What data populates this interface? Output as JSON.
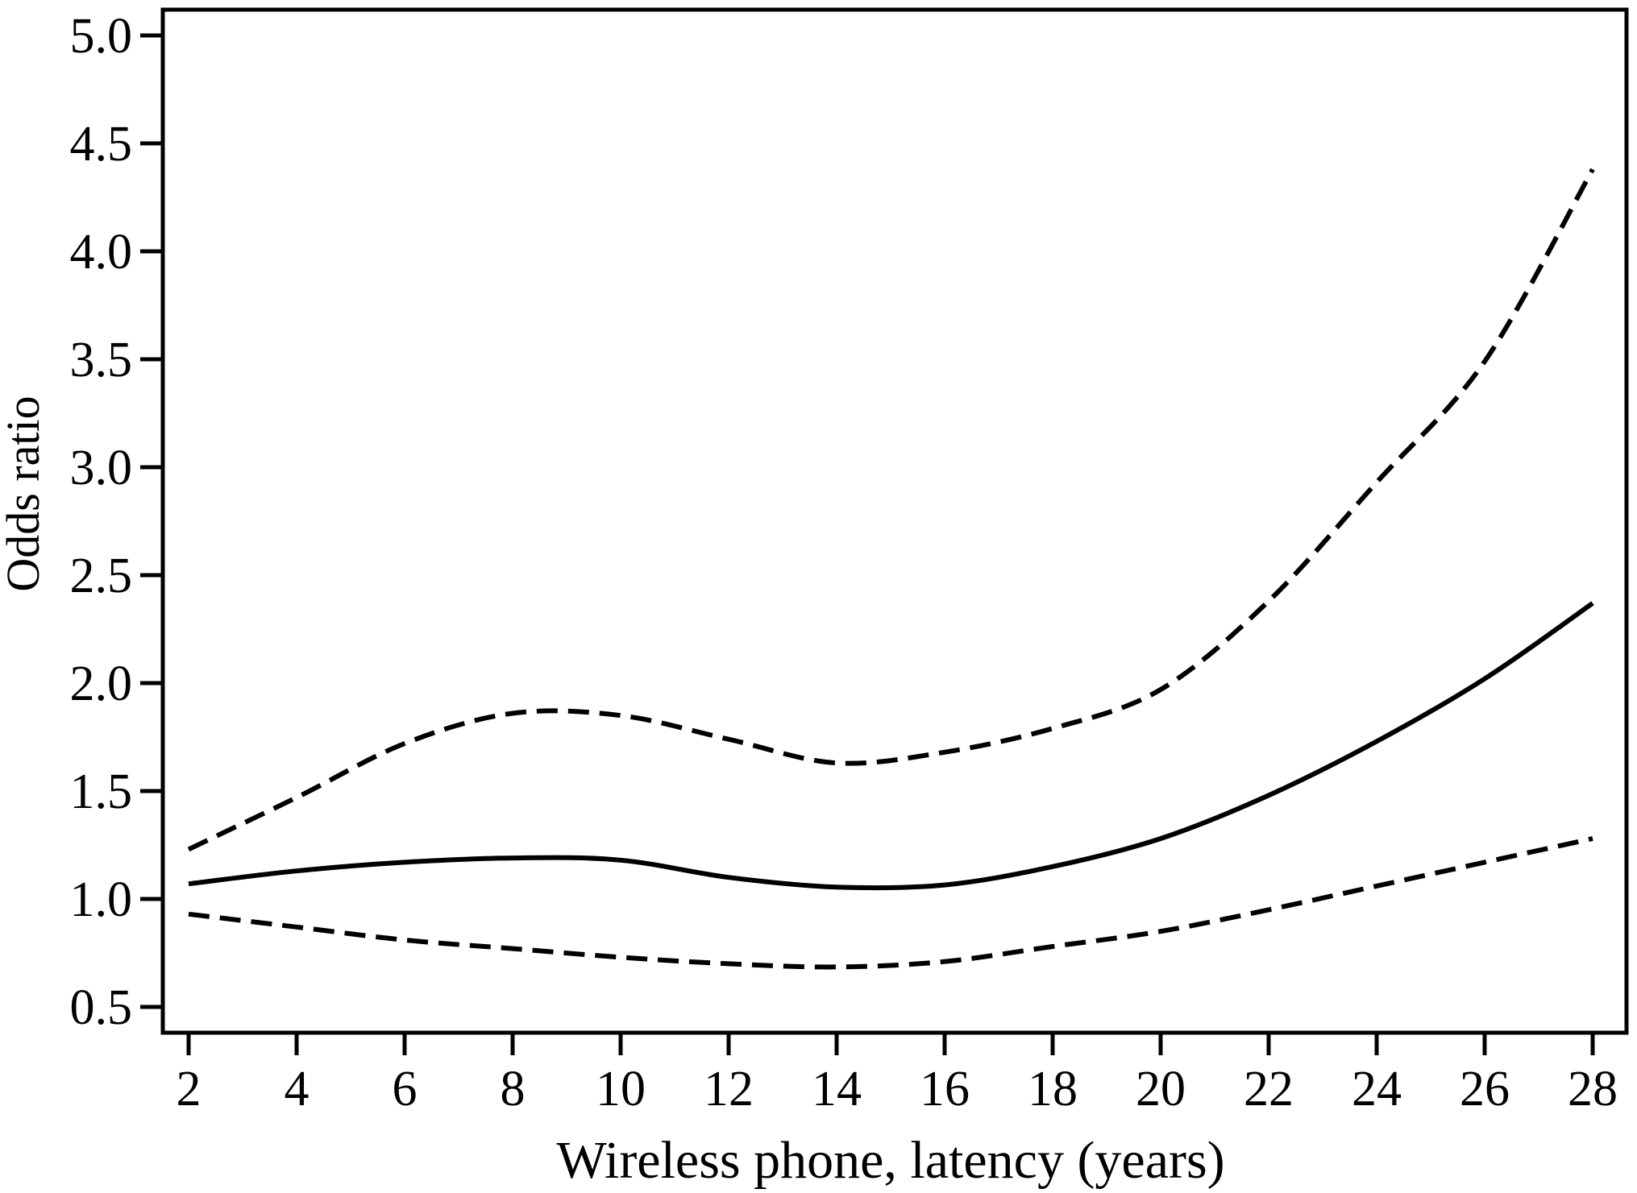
{
  "figure": {
    "background_color": "#ffffff",
    "line_color": "#000000"
  },
  "chart_data": {
    "type": "line",
    "title": "",
    "xlabel": "Wireless phone, latency (years)",
    "ylabel": "Odds ratio",
    "x": [
      2,
      4,
      6,
      8,
      10,
      12,
      14,
      16,
      18,
      20,
      22,
      24,
      26,
      28
    ],
    "series": [
      {
        "name": "odds-ratio-estimate",
        "style": "solid",
        "values": [
          1.07,
          1.13,
          1.17,
          1.19,
          1.18,
          1.1,
          1.055,
          1.065,
          1.15,
          1.28,
          1.48,
          1.73,
          2.02,
          2.37
        ]
      },
      {
        "name": "upper-confidence-limit",
        "style": "dashed",
        "values": [
          1.23,
          1.47,
          1.72,
          1.86,
          1.85,
          1.74,
          1.63,
          1.68,
          1.79,
          1.97,
          2.38,
          2.93,
          3.49,
          4.38
        ]
      },
      {
        "name": "lower-confidence-limit",
        "style": "dashed",
        "values": [
          0.93,
          0.87,
          0.81,
          0.77,
          0.73,
          0.7,
          0.685,
          0.71,
          0.78,
          0.85,
          0.95,
          1.06,
          1.17,
          1.28
        ]
      }
    ],
    "x_ticks": [
      2,
      4,
      6,
      8,
      10,
      12,
      14,
      16,
      18,
      20,
      22,
      24,
      26,
      28
    ],
    "x_tick_labels": [
      "2",
      "4",
      "6",
      "8",
      "10",
      "12",
      "14",
      "16",
      "18",
      "20",
      "22",
      "24",
      "26",
      "28"
    ],
    "y_ticks": [
      0.5,
      1.0,
      1.5,
      2.0,
      2.5,
      3.0,
      3.5,
      4.0,
      4.5,
      5.0
    ],
    "y_tick_labels": [
      "0.5",
      "1.0",
      "1.5",
      "2.0",
      "2.5",
      "3.0",
      "3.5",
      "4.0",
      "4.5",
      "5.0"
    ],
    "xlim": [
      1.5,
      28.6
    ],
    "ylim": [
      0.38,
      5.12
    ],
    "grid": false,
    "legend": false
  }
}
